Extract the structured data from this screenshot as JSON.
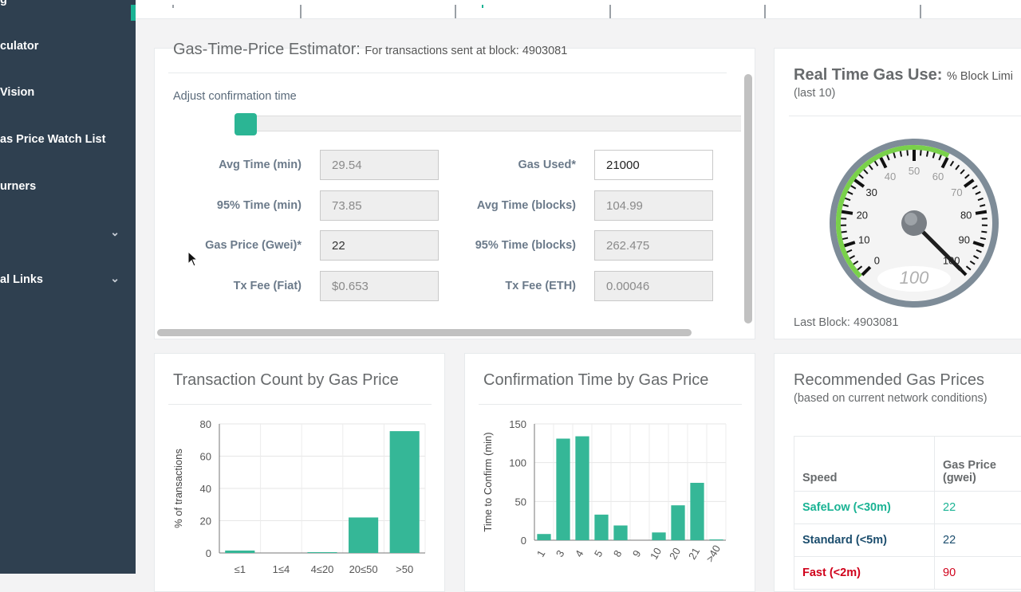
{
  "sidebar": {
    "items": [
      {
        "label": "g"
      },
      {
        "label": "culator"
      },
      {
        "label": " Vision"
      },
      {
        "label": "as Price Watch List"
      },
      {
        "label": "urners"
      },
      {
        "label": ""
      },
      {
        "label": "al Links"
      }
    ]
  },
  "estimator": {
    "title": "Gas-Time-Price Estimator:",
    "subtitle": "For transactions sent at block: 4903081",
    "adjust_label": "Adjust confirmation time",
    "fields": {
      "avg_time_min": {
        "label": "Avg Time (min)",
        "value": "29.54"
      },
      "p95_time_min": {
        "label": "95% Time (min)",
        "value": "73.85"
      },
      "gas_price": {
        "label": "Gas Price (Gwei)*",
        "value": "22"
      },
      "tx_fee_fiat": {
        "label": "Tx Fee (Fiat)",
        "value": "$0.653"
      },
      "gas_used": {
        "label": "Gas Used*",
        "value": "21000"
      },
      "avg_time_blocks": {
        "label": "Avg Time (blocks)",
        "value": "104.99"
      },
      "p95_time_blocks": {
        "label": "95% Time (blocks)",
        "value": "262.475"
      },
      "tx_fee_eth": {
        "label": "Tx Fee (ETH)",
        "value": "0.00046"
      }
    }
  },
  "gas_use": {
    "title": "Real Time Gas Use:",
    "subtitle": "% Block Limi",
    "subtitle2": "(last 10)",
    "last_block": "Last Block: 4903081",
    "gauge_value": 100,
    "gauge_readout": "100",
    "gauge_ticks": [
      "0",
      "10",
      "20",
      "30",
      "40",
      "50",
      "60",
      "70",
      "80",
      "90",
      "100"
    ]
  },
  "charts": {
    "count": {
      "title": "Transaction Count by Gas Price",
      "ylabel": "% of transactions"
    },
    "confirm": {
      "title": "Confirmation Time by Gas Price",
      "ylabel": "Time to Confirm (min)"
    }
  },
  "chart_data": [
    {
      "type": "bar",
      "title": "Transaction Count by Gas Price",
      "ylabel": "% of transactions",
      "xlabel": "",
      "categories": [
        "≤1",
        "1≤4",
        "4≤20",
        "20≤50",
        ">50"
      ],
      "values": [
        1.5,
        0,
        0.5,
        22,
        75.5
      ],
      "ylim": [
        0,
        80
      ],
      "yticks": [
        "0",
        "20",
        "40",
        "60",
        "80"
      ],
      "color": "#35b797",
      "grid": true
    },
    {
      "type": "bar",
      "title": "Confirmation Time by Gas Price",
      "ylabel": "Time to Confirm (min)",
      "xlabel": "",
      "categories": [
        "1",
        "3",
        "4",
        "5",
        "8",
        "9",
        "10",
        "20",
        "21",
        ">40"
      ],
      "values": [
        8,
        131,
        134,
        33,
        19,
        0,
        10,
        45,
        74,
        1
      ],
      "ylim": [
        0,
        150
      ],
      "yticks": [
        "0",
        "50",
        "100",
        "150"
      ],
      "color": "#35b797",
      "grid": true
    }
  ],
  "recommended": {
    "title": "Recommended Gas Prices",
    "subtitle": "(based on current network conditions)",
    "headers": {
      "speed": "Speed",
      "price": "Gas Price (gwei)"
    },
    "rows": [
      {
        "speed": "SafeLow (<30m)",
        "price": "22",
        "color": "#1ab394"
      },
      {
        "speed": "Standard (<5m)",
        "price": "22",
        "color": "#1c4e6e"
      },
      {
        "speed": "Fast (<2m)",
        "price": "90",
        "color": "#d0021b"
      }
    ]
  }
}
